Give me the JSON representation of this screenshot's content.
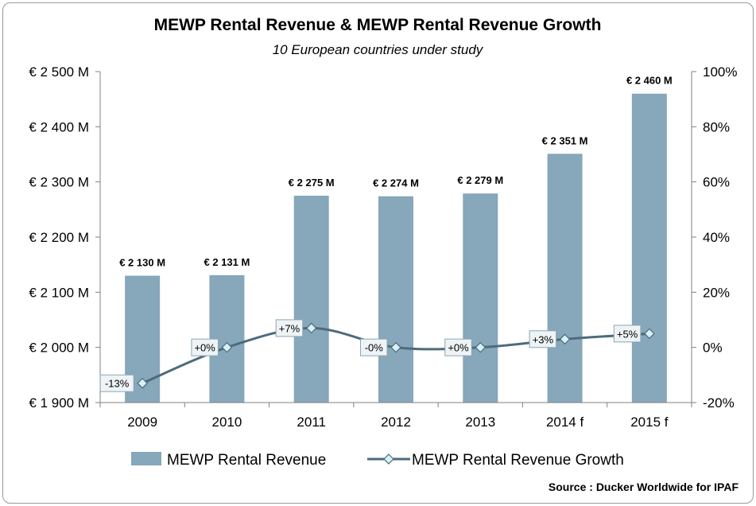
{
  "chart_data": {
    "type": "bar",
    "title": "MEWP Rental Revenue & MEWP Rental Revenue Growth",
    "subtitle": "10 European countries under study",
    "categories": [
      "2009",
      "2010",
      "2011",
      "2012",
      "2013",
      "2014 f",
      "2015 f"
    ],
    "series": [
      {
        "name": "MEWP Rental Revenue",
        "type": "bar",
        "axis": "left",
        "values": [
          2130,
          2131,
          2275,
          2274,
          2279,
          2351,
          2460
        ],
        "labels": [
          "€ 2 130 M",
          "€ 2 131 M",
          "€ 2 275 M",
          "€ 2 274 M",
          "€ 2 279 M",
          "€ 2 351 M",
          "€ 2 460 M"
        ],
        "color": "#87a7ba"
      },
      {
        "name": "MEWP Rental Revenue Growth",
        "type": "line",
        "axis": "right",
        "values": [
          -13,
          0,
          7,
          0,
          0,
          3,
          5
        ],
        "labels": [
          "-13%",
          "+0%",
          "+7%",
          "-0%",
          "+0%",
          "+3%",
          "+5%"
        ],
        "color": "#4d6b7c",
        "marker_color": "#d6f1f7"
      }
    ],
    "y_left": {
      "min": 1900,
      "max": 2500,
      "step": 100,
      "tick_labels": [
        "€ 1 900 M",
        "€ 2 000 M",
        "€ 2 100 M",
        "€ 2 200 M",
        "€ 2 300 M",
        "€ 2 400 M",
        "€ 2 500 M"
      ]
    },
    "y_right": {
      "min": -20,
      "max": 100,
      "step": 20,
      "tick_labels": [
        "-20%",
        "0%",
        "20%",
        "40%",
        "60%",
        "80%",
        "100%"
      ]
    },
    "legend": {
      "position": "bottom",
      "entries": [
        "MEWP Rental Revenue",
        "MEWP Rental Revenue Growth"
      ]
    },
    "source": "Source : Ducker Worldwide for IPAF",
    "grid": false
  }
}
